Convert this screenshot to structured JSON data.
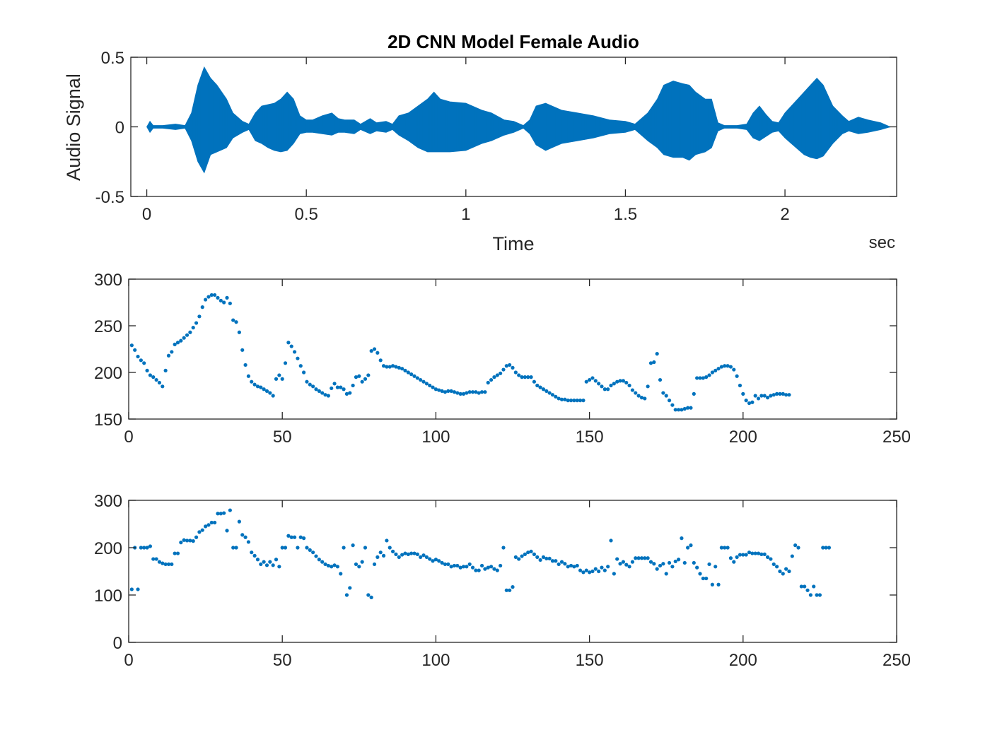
{
  "colors": {
    "series": "#0072BD",
    "axis": "#262626",
    "background": "#ffffff"
  },
  "chart_data": [
    {
      "type": "line",
      "title": "2D CNN Model Female Audio",
      "xlabel": "Time",
      "x_unit_label": "sec",
      "ylabel": "Audio Signal",
      "xlim": [
        -0.05,
        2.35
      ],
      "ylim": [
        -0.5,
        0.5
      ],
      "xticks": [
        0,
        0.5,
        1,
        1.5,
        2
      ],
      "xtick_labels": [
        "0",
        "0.5",
        "1",
        "1.5",
        "2"
      ],
      "yticks": [
        -0.5,
        0,
        0.5
      ],
      "ytick_labels": [
        "-0.5",
        "0",
        "0.5"
      ],
      "grid": false,
      "series": [
        {
          "envelope": {
            "t": [
              0,
              0.01,
              0.02,
              0.05,
              0.09,
              0.12,
              0.14,
              0.16,
              0.18,
              0.2,
              0.22,
              0.25,
              0.27,
              0.3,
              0.32,
              0.34,
              0.36,
              0.38,
              0.4,
              0.42,
              0.44,
              0.46,
              0.48,
              0.5,
              0.52,
              0.55,
              0.58,
              0.6,
              0.62,
              0.65,
              0.67,
              0.7,
              0.72,
              0.75,
              0.77,
              0.79,
              0.82,
              0.85,
              0.88,
              0.9,
              0.92,
              0.95,
              1.0,
              1.05,
              1.08,
              1.12,
              1.15,
              1.18,
              1.2,
              1.22,
              1.25,
              1.27,
              1.3,
              1.35,
              1.4,
              1.45,
              1.5,
              1.53,
              1.57,
              1.6,
              1.62,
              1.65,
              1.68,
              1.7,
              1.72,
              1.75,
              1.77,
              1.79,
              1.81,
              1.85,
              1.88,
              1.9,
              1.92,
              1.94,
              1.96,
              1.98,
              2.0,
              2.02,
              2.04,
              2.06,
              2.08,
              2.1,
              2.12,
              2.15,
              2.18,
              2.2,
              2.23,
              2.26,
              2.3,
              2.33
            ],
            "upper": [
              0.0,
              0.04,
              0.01,
              0.01,
              0.02,
              0.01,
              0.1,
              0.3,
              0.43,
              0.35,
              0.3,
              0.2,
              0.1,
              0.04,
              0.02,
              0.1,
              0.15,
              0.16,
              0.17,
              0.2,
              0.25,
              0.2,
              0.08,
              0.05,
              0.05,
              0.08,
              0.1,
              0.06,
              0.05,
              0.05,
              0.02,
              0.06,
              0.03,
              0.04,
              0.02,
              0.08,
              0.1,
              0.15,
              0.2,
              0.25,
              0.2,
              0.18,
              0.17,
              0.12,
              0.1,
              0.05,
              0.04,
              0.01,
              0.05,
              0.15,
              0.17,
              0.15,
              0.12,
              0.1,
              0.08,
              0.05,
              0.04,
              0.02,
              0.1,
              0.2,
              0.3,
              0.33,
              0.31,
              0.3,
              0.25,
              0.2,
              0.2,
              0.03,
              0.01,
              0.01,
              0.02,
              0.1,
              0.15,
              0.09,
              0.04,
              0.03,
              0.1,
              0.15,
              0.2,
              0.25,
              0.3,
              0.35,
              0.3,
              0.15,
              0.08,
              0.04,
              0.07,
              0.05,
              0.03,
              0.0
            ],
            "lower": [
              0.0,
              -0.04,
              -0.01,
              -0.01,
              -0.02,
              -0.01,
              -0.1,
              -0.25,
              -0.33,
              -0.2,
              -0.18,
              -0.15,
              -0.08,
              -0.04,
              -0.02,
              -0.1,
              -0.12,
              -0.15,
              -0.17,
              -0.18,
              -0.17,
              -0.12,
              -0.05,
              -0.04,
              -0.04,
              -0.05,
              -0.06,
              -0.04,
              -0.04,
              -0.05,
              -0.02,
              -0.05,
              -0.03,
              -0.04,
              -0.02,
              -0.06,
              -0.1,
              -0.15,
              -0.18,
              -0.18,
              -0.18,
              -0.18,
              -0.17,
              -0.12,
              -0.1,
              -0.06,
              -0.04,
              -0.01,
              -0.05,
              -0.13,
              -0.17,
              -0.15,
              -0.12,
              -0.1,
              -0.08,
              -0.05,
              -0.04,
              -0.02,
              -0.1,
              -0.15,
              -0.2,
              -0.22,
              -0.22,
              -0.24,
              -0.2,
              -0.18,
              -0.15,
              -0.03,
              -0.01,
              -0.01,
              -0.02,
              -0.08,
              -0.1,
              -0.07,
              -0.04,
              -0.03,
              -0.08,
              -0.12,
              -0.16,
              -0.2,
              -0.22,
              -0.23,
              -0.21,
              -0.12,
              -0.05,
              -0.03,
              -0.05,
              -0.04,
              -0.02,
              0.0
            ]
          }
        }
      ]
    },
    {
      "type": "scatter",
      "xlim": [
        0,
        250
      ],
      "ylim": [
        150,
        300
      ],
      "xticks": [
        0,
        50,
        100,
        150,
        200,
        250
      ],
      "xtick_labels": [
        "0",
        "50",
        "100",
        "150",
        "200",
        "250"
      ],
      "yticks": [
        150,
        200,
        250,
        300
      ],
      "ytick_labels": [
        "150",
        "200",
        "250",
        "300"
      ],
      "grid": false,
      "series": [
        {
          "x_start": 1,
          "values": [
            229,
            224,
            217,
            213,
            210,
            202,
            197,
            195,
            192,
            189,
            185,
            202,
            218,
            222,
            230,
            232,
            234,
            237,
            240,
            243,
            248,
            253,
            260,
            270,
            278,
            281,
            283,
            283,
            280,
            277,
            275,
            280,
            274,
            256,
            254,
            243,
            224,
            208,
            196,
            190,
            187,
            185,
            184,
            182,
            180,
            178,
            175,
            193,
            197,
            193,
            210,
            232,
            228,
            222,
            215,
            207,
            200,
            190,
            187,
            185,
            182,
            180,
            178,
            176,
            175,
            183,
            188,
            184,
            184,
            182,
            177,
            178,
            186,
            195,
            196,
            190,
            193,
            197,
            223,
            225,
            221,
            213,
            207,
            206,
            206,
            207,
            206,
            205,
            204,
            202,
            200,
            198,
            196,
            194,
            192,
            190,
            188,
            186,
            184,
            182,
            181,
            180,
            179,
            180,
            180,
            179,
            178,
            177,
            177,
            178,
            179,
            179,
            179,
            178,
            179,
            179,
            189,
            192,
            195,
            197,
            199,
            203,
            207,
            208,
            205,
            200,
            197,
            195,
            195,
            195,
            195,
            190,
            186,
            184,
            182,
            180,
            178,
            176,
            174,
            172,
            171,
            171,
            170,
            170,
            170,
            170,
            170,
            170,
            190,
            192,
            194,
            191,
            188,
            185,
            182,
            182,
            186,
            188,
            190,
            191,
            191,
            189,
            186,
            181,
            178,
            175,
            173,
            172,
            185,
            210,
            211,
            220,
            192,
            178,
            175,
            170,
            165,
            160,
            160,
            160,
            161,
            162,
            162,
            177,
            194,
            194,
            194,
            195,
            197,
            200,
            202,
            204,
            206,
            207,
            207,
            206,
            203,
            196,
            186,
            177,
            170,
            167,
            168,
            175,
            172,
            175,
            175,
            173,
            175,
            176,
            177,
            177,
            177,
            176,
            176
          ]
        }
      ]
    },
    {
      "type": "scatter",
      "xlim": [
        0,
        250
      ],
      "ylim": [
        0,
        300
      ],
      "xticks": [
        0,
        50,
        100,
        150,
        200,
        250
      ],
      "xtick_labels": [
        "0",
        "50",
        "100",
        "150",
        "200",
        "250"
      ],
      "yticks": [
        0,
        100,
        200,
        300
      ],
      "ytick_labels": [
        "0",
        "100",
        "200",
        "300"
      ],
      "grid": false,
      "series": [
        {
          "x_start": 1,
          "values": [
            112,
            200,
            112,
            200,
            200,
            200,
            203,
            176,
            176,
            170,
            167,
            165,
            165,
            165,
            188,
            188,
            211,
            216,
            215,
            215,
            214,
            222,
            233,
            237,
            245,
            248,
            253,
            253,
            272,
            272,
            273,
            236,
            279,
            200,
            200,
            255,
            227,
            222,
            212,
            190,
            183,
            175,
            165,
            170,
            163,
            170,
            163,
            175,
            160,
            200,
            200,
            225,
            222,
            222,
            200,
            222,
            220,
            200,
            195,
            190,
            182,
            175,
            170,
            165,
            162,
            160,
            163,
            160,
            145,
            200,
            100,
            115,
            205,
            165,
            160,
            170,
            200,
            100,
            95,
            165,
            180,
            190,
            183,
            215,
            200,
            192,
            186,
            180,
            185,
            188,
            186,
            188,
            188,
            186,
            180,
            184,
            180,
            176,
            172,
            175,
            172,
            168,
            165,
            165,
            160,
            162,
            162,
            158,
            160,
            160,
            165,
            158,
            152,
            152,
            162,
            155,
            158,
            160,
            155,
            152,
            162,
            200,
            110,
            110,
            117,
            180,
            176,
            182,
            186,
            190,
            192,
            186,
            180,
            174,
            180,
            177,
            177,
            172,
            172,
            165,
            170,
            166,
            160,
            162,
            160,
            162,
            152,
            148,
            152,
            148,
            150,
            155,
            150,
            158,
            152,
            160,
            215,
            145,
            176,
            166,
            170,
            164,
            160,
            170,
            178,
            178,
            178,
            178,
            178,
            170,
            166,
            155,
            162,
            166,
            145,
            168,
            160,
            171,
            175,
            220,
            168,
            200,
            205,
            168,
            158,
            145,
            135,
            135,
            165,
            122,
            160,
            122,
            200,
            200,
            200,
            178,
            170,
            180,
            185,
            185,
            185,
            190,
            188,
            188,
            188,
            186,
            186,
            180,
            176,
            165,
            160,
            150,
            145,
            155,
            150,
            182,
            205,
            200,
            118,
            118,
            110,
            100,
            118,
            100,
            100,
            200,
            200,
            200
          ]
        }
      ]
    }
  ]
}
